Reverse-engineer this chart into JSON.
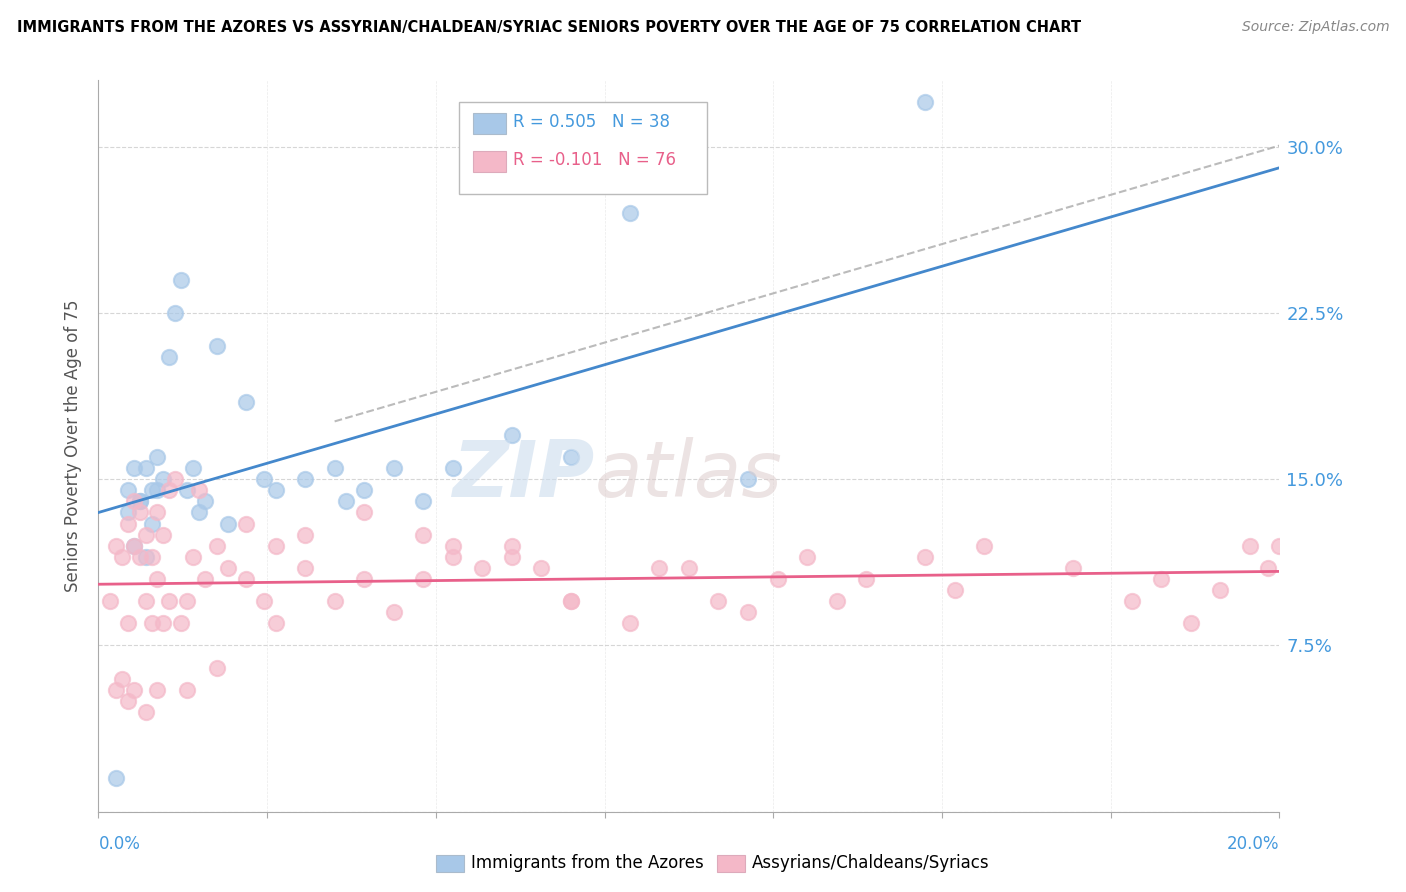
{
  "title": "IMMIGRANTS FROM THE AZORES VS ASSYRIAN/CHALDEAN/SYRIAC SENIORS POVERTY OVER THE AGE OF 75 CORRELATION CHART",
  "source": "Source: ZipAtlas.com",
  "xlim": [
    0.0,
    20.0
  ],
  "ylim": [
    0.0,
    33.0
  ],
  "ylabel_label": "Seniors Poverty Over the Age of 75",
  "blue_label": "Immigrants from the Azores",
  "pink_label": "Assyrians/Chaldeans/Syriacs",
  "blue_R": 0.505,
  "blue_N": 38,
  "pink_R": -0.101,
  "pink_N": 76,
  "blue_color": "#a8c8e8",
  "pink_color": "#f4b8c8",
  "blue_line_color": "#4488cc",
  "pink_line_color": "#e8608a",
  "blue_scatter_x": [
    0.3,
    0.5,
    0.6,
    0.7,
    0.8,
    0.9,
    1.0,
    1.1,
    1.2,
    1.3,
    1.4,
    1.5,
    1.6,
    1.7,
    2.0,
    2.5,
    3.0,
    3.5,
    4.0,
    4.5,
    5.0,
    5.5,
    6.0,
    7.0,
    8.0,
    9.0,
    11.0,
    14.0,
    0.5,
    0.6,
    0.7,
    0.8,
    0.9,
    1.0,
    2.2,
    4.2,
    2.8,
    1.8
  ],
  "blue_scatter_y": [
    1.5,
    13.5,
    12.0,
    14.0,
    11.5,
    13.0,
    14.5,
    15.0,
    20.5,
    22.5,
    24.0,
    14.5,
    15.5,
    13.5,
    21.0,
    18.5,
    14.5,
    15.0,
    15.5,
    14.5,
    15.5,
    14.0,
    15.5,
    17.0,
    16.0,
    27.0,
    15.0,
    32.0,
    14.5,
    15.5,
    14.0,
    15.5,
    14.5,
    16.0,
    13.0,
    14.0,
    15.0,
    14.0
  ],
  "pink_scatter_x": [
    0.2,
    0.3,
    0.4,
    0.5,
    0.5,
    0.6,
    0.6,
    0.7,
    0.7,
    0.8,
    0.8,
    0.9,
    0.9,
    1.0,
    1.0,
    1.1,
    1.1,
    1.2,
    1.2,
    1.3,
    1.4,
    1.5,
    1.6,
    1.7,
    1.8,
    2.0,
    2.2,
    2.5,
    2.8,
    3.0,
    3.5,
    4.0,
    4.5,
    5.0,
    5.5,
    6.0,
    6.5,
    7.0,
    7.5,
    8.0,
    9.0,
    10.0,
    11.0,
    12.0,
    13.0,
    14.0,
    15.0,
    16.5,
    18.0,
    19.5,
    0.3,
    0.4,
    0.5,
    0.6,
    0.8,
    1.0,
    1.5,
    2.0,
    2.5,
    3.0,
    3.5,
    4.5,
    5.5,
    7.0,
    9.5,
    10.5,
    11.5,
    12.5,
    14.5,
    17.5,
    18.5,
    19.0,
    19.8,
    20.0,
    6.0,
    8.0
  ],
  "pink_scatter_y": [
    9.5,
    12.0,
    11.5,
    13.0,
    8.5,
    14.0,
    12.0,
    11.5,
    13.5,
    12.5,
    9.5,
    8.5,
    11.5,
    10.5,
    13.5,
    12.5,
    8.5,
    9.5,
    14.5,
    15.0,
    8.5,
    9.5,
    11.5,
    14.5,
    10.5,
    12.0,
    11.0,
    10.5,
    9.5,
    12.0,
    11.0,
    9.5,
    10.5,
    9.0,
    10.5,
    12.0,
    11.0,
    11.5,
    11.0,
    9.5,
    8.5,
    11.0,
    9.0,
    11.5,
    10.5,
    11.5,
    12.0,
    11.0,
    10.5,
    12.0,
    5.5,
    6.0,
    5.0,
    5.5,
    4.5,
    5.5,
    5.5,
    6.5,
    13.0,
    8.5,
    12.5,
    13.5,
    12.5,
    12.0,
    11.0,
    9.5,
    10.5,
    9.5,
    10.0,
    9.5,
    8.5,
    10.0,
    11.0,
    12.0,
    11.5,
    9.5
  ]
}
